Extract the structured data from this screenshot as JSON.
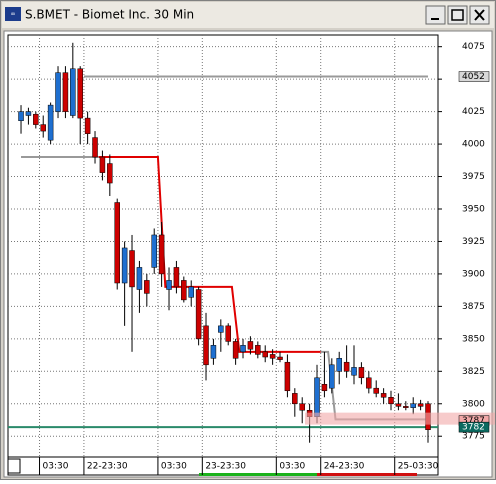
{
  "chart_data": {
    "type": "candlestick",
    "title": "S.BMET - Biomet Inc. 30 Min",
    "open": [
      4018,
      4022,
      4023,
      4015,
      4003,
      4025,
      4055,
      4022,
      4058,
      4020,
      4005,
      3990,
      3985,
      3955,
      3893,
      3918,
      3888,
      3895,
      3905,
      3930,
      3888,
      3905,
      3895,
      3882,
      3888,
      3860,
      3835,
      3855,
      3860,
      3848,
      3840,
      3848,
      3845,
      3840,
      3838,
      3836,
      3832,
      3808,
      3800,
      3795,
      3790,
      3815,
      3812,
      3825,
      3832,
      3822,
      3828,
      3820,
      3812,
      3808,
      3805,
      3800,
      3798,
      3797,
      3800,
      3800
    ],
    "high": [
      4030,
      4028,
      4025,
      4022,
      4032,
      4060,
      4060,
      4078,
      4060,
      4025,
      4010,
      3995,
      3992,
      3958,
      3925,
      3930,
      3910,
      3900,
      3935,
      3940,
      3905,
      3910,
      3898,
      3895,
      3890,
      3870,
      3850,
      3865,
      3862,
      3850,
      3850,
      3852,
      3848,
      3845,
      3842,
      3840,
      3838,
      3812,
      3805,
      3800,
      3830,
      3840,
      3835,
      3840,
      3845,
      3845,
      3832,
      3825,
      3818,
      3812,
      3810,
      3808,
      3802,
      3805,
      3803,
      3802
    ],
    "low": [
      4008,
      4015,
      4012,
      4005,
      4000,
      4020,
      4020,
      4020,
      4000,
      4000,
      3985,
      3972,
      3960,
      3888,
      3860,
      3840,
      3870,
      3875,
      3900,
      3890,
      3872,
      3885,
      3878,
      3875,
      3845,
      3818,
      3830,
      3840,
      3845,
      3830,
      3835,
      3838,
      3835,
      3832,
      3830,
      3832,
      3805,
      3790,
      3785,
      3770,
      3785,
      3805,
      3808,
      3815,
      3820,
      3815,
      3815,
      3808,
      3805,
      3800,
      3795,
      3795,
      3795,
      3792,
      3795,
      3770
    ],
    "close": [
      4025,
      4025,
      4015,
      4010,
      4030,
      4055,
      4025,
      4058,
      4020,
      4008,
      3990,
      3978,
      3970,
      3893,
      3920,
      3890,
      3905,
      3885,
      3930,
      3900,
      3895,
      3890,
      3880,
      3890,
      3850,
      3830,
      3845,
      3860,
      3848,
      3835,
      3845,
      3842,
      3838,
      3836,
      3835,
      3834,
      3810,
      3800,
      3795,
      3790,
      3820,
      3810,
      3830,
      3835,
      3825,
      3828,
      3820,
      3812,
      3808,
      3805,
      3800,
      3798,
      3797,
      3800,
      3798,
      3780
    ],
    "up_color": "#1e6fd0",
    "down_color": "#cc0000",
    "xlim": [
      -1.76,
      56.35
    ],
    "xticks": [
      {
        "value": 2.5,
        "label": "03:30"
      },
      {
        "value": 8.5,
        "label": "22-23:30"
      },
      {
        "value": 18.5,
        "label": "03:30"
      },
      {
        "value": 24.5,
        "label": "23-23:30"
      },
      {
        "value": 34.5,
        "label": "03:30"
      },
      {
        "value": 40.5,
        "label": "24-23:30"
      },
      {
        "value": 50.5,
        "label": "25-03:30"
      }
    ],
    "ylim": [
      3759,
      4084
    ],
    "yticks": [
      3775,
      3800,
      3825,
      3850,
      3875,
      3900,
      3925,
      3950,
      3975,
      4000,
      4025,
      4050,
      4075
    ],
    "grid": true,
    "lines": [
      {
        "color": "#999999",
        "x": [
          0,
          10.5
        ],
        "values": [
          3990,
          3990
        ]
      },
      {
        "color": "#999999",
        "x": [
          8.5,
          55
        ],
        "values": [
          4052,
          4052
        ]
      },
      {
        "color": "#e00000",
        "x": [
          10.5,
          18.5,
          19.5,
          28.5,
          29.5,
          40.5
        ],
        "values": [
          3990,
          3990,
          3890,
          3890,
          3840,
          3840
        ]
      },
      {
        "color": "#999999",
        "x": [
          40.5,
          41.5,
          42.5,
          55
        ],
        "values": [
          3840,
          3840,
          3788,
          3788
        ]
      },
      {
        "color": "#2a8a6a",
        "x": [
          -1.76,
          56.35
        ],
        "values": [
          3782,
          3782
        ]
      }
    ],
    "markers": [
      {
        "value": 4052,
        "color": "#d8d8d8"
      },
      {
        "value": 3787,
        "color": "#f2a8a8"
      },
      {
        "value": 3782,
        "color": "#0b6a60"
      }
    ]
  }
}
